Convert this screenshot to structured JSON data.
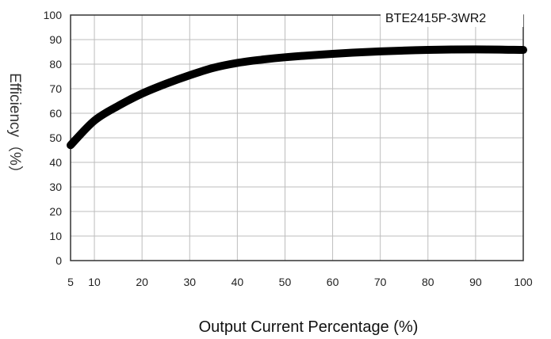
{
  "chart_data": {
    "type": "line",
    "title": "",
    "xlabel": "Output Current Percentage (%)",
    "ylabel": "Efficiency（%）",
    "xlim": [
      5,
      100
    ],
    "ylim": [
      0,
      100
    ],
    "x_ticks": [
      5,
      10,
      20,
      30,
      40,
      50,
      60,
      70,
      80,
      90,
      100
    ],
    "y_ticks": [
      0,
      10,
      20,
      30,
      40,
      50,
      60,
      70,
      80,
      90,
      100
    ],
    "grid": true,
    "legend_position": "top-right",
    "series": [
      {
        "name": "BTE2415P-3WR2",
        "color": "#000000",
        "x": [
          5,
          10,
          15,
          20,
          25,
          30,
          35,
          40,
          45,
          50,
          60,
          70,
          80,
          90,
          100
        ],
        "y": [
          47,
          57,
          63,
          68,
          72,
          75.5,
          78.5,
          80.5,
          81.8,
          82.8,
          84.2,
          85.2,
          85.8,
          86,
          85.8
        ]
      }
    ]
  }
}
